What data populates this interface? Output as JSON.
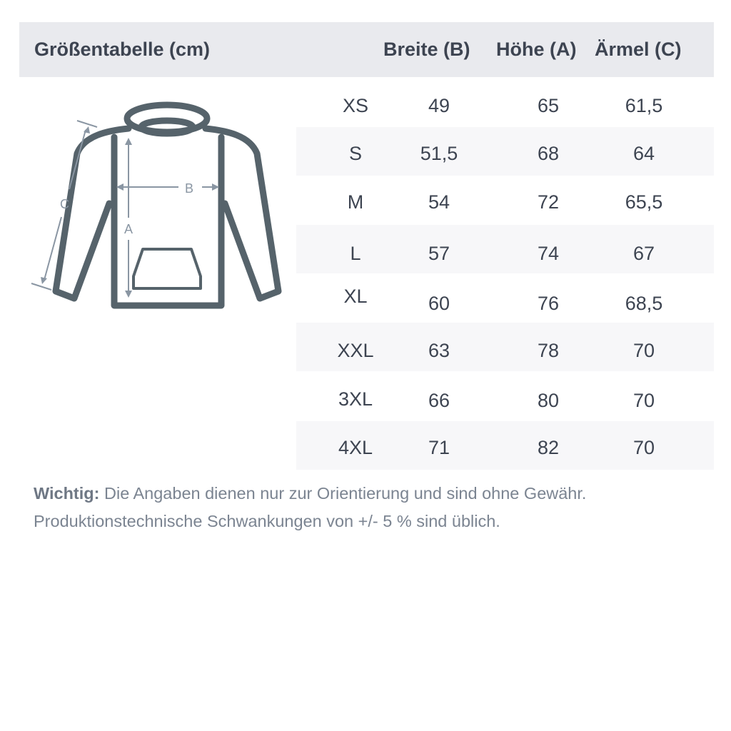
{
  "header": {
    "title": "Größentabelle (cm)",
    "columns": [
      "Breite (B)",
      "Höhe (A)",
      "Ärmel (C)"
    ]
  },
  "diagram": {
    "labels": {
      "a": "A",
      "b": "B",
      "c": "C"
    },
    "stroke_color": "#56636b",
    "arrow_color": "#8a96a3"
  },
  "rows": [
    {
      "size": "XS",
      "breite": "49",
      "hoehe": "65",
      "aermel": "61,5"
    },
    {
      "size": "S",
      "breite": "51,5",
      "hoehe": "68",
      "aermel": "64"
    },
    {
      "size": "M",
      "breite": "54",
      "hoehe": "72",
      "aermel": "65,5"
    },
    {
      "size": "L",
      "breite": "57",
      "hoehe": "74",
      "aermel": "67"
    },
    {
      "size": "XL",
      "breite": "60",
      "hoehe": "76",
      "aermel": "68,5"
    },
    {
      "size": "XXL",
      "breite": "63",
      "hoehe": "78",
      "aermel": "70"
    },
    {
      "size": "3XL",
      "breite": "66",
      "hoehe": "80",
      "aermel": "70"
    },
    {
      "size": "4XL",
      "breite": "71",
      "hoehe": "82",
      "aermel": "70"
    }
  ],
  "note": {
    "label": "Wichtig:",
    "line1": " Die Angaben dienen nur zur Orientierung und sind ohne Gewähr.",
    "line2": "Produktionstechnische Schwankungen von +/- 5 % sind üblich."
  }
}
